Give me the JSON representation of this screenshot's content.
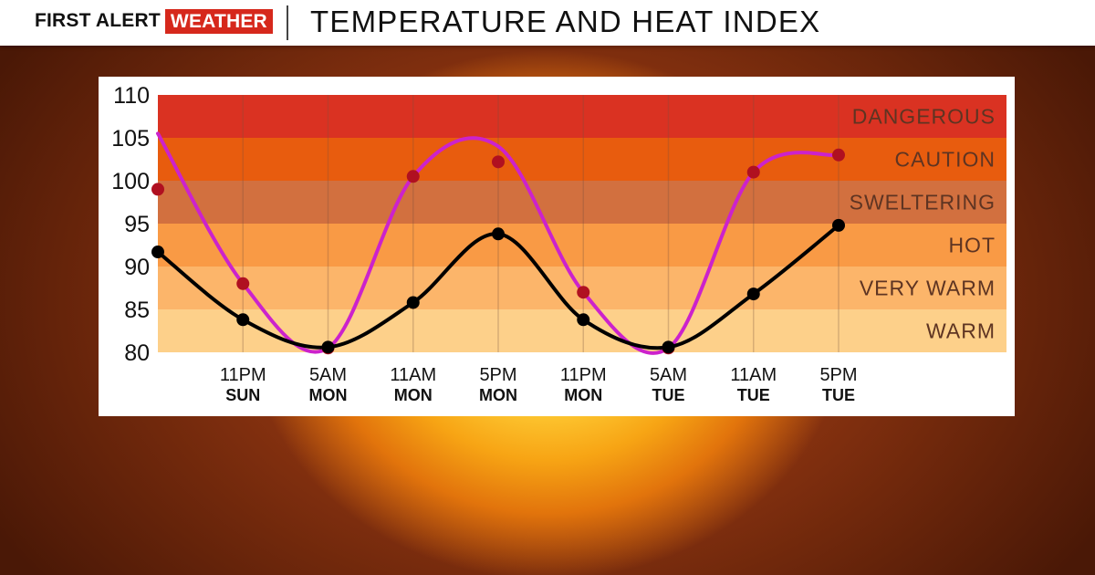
{
  "header": {
    "brand_first": "FIRST ALERT",
    "brand_weather": "WEATHER",
    "title": "TEMPERATURE AND HEAT INDEX"
  },
  "colors": {
    "brand_red": "#d6281c",
    "heat_index_line": "#cc22cc",
    "heat_index_point": "#b01020",
    "temperature_line": "#000000"
  },
  "chart_data": {
    "type": "line",
    "title": "TEMPERATURE AND HEAT INDEX",
    "ylim": [
      80,
      110
    ],
    "yticks": [
      80,
      85,
      90,
      95,
      100,
      105,
      110
    ],
    "grid": true,
    "x_labels": [
      {
        "time": "11PM",
        "day": "SUN"
      },
      {
        "time": "5AM",
        "day": "MON"
      },
      {
        "time": "11AM",
        "day": "MON"
      },
      {
        "time": "5PM",
        "day": "MON"
      },
      {
        "time": "11PM",
        "day": "MON"
      },
      {
        "time": "5AM",
        "day": "TUE"
      },
      {
        "time": "11AM",
        "day": "TUE"
      },
      {
        "time": "5PM",
        "day": "TUE"
      }
    ],
    "zones": [
      {
        "label": "WARM",
        "from": 80,
        "to": 85,
        "color": "#fdd08a"
      },
      {
        "label": "VERY WARM",
        "from": 85,
        "to": 90,
        "color": "#fcb56a"
      },
      {
        "label": "HOT",
        "from": 90,
        "to": 95,
        "color": "#f99a45"
      },
      {
        "label": "SWELTERING",
        "from": 95,
        "to": 100,
        "color": "#d2703f"
      },
      {
        "label": "CAUTION",
        "from": 100,
        "to": 105,
        "color": "#e85c0e"
      },
      {
        "label": "DANGEROUS",
        "from": 105,
        "to": 110,
        "color": "#da3222"
      }
    ],
    "series": [
      {
        "values": [
          99,
          88,
          80.5,
          100.5,
          102.2,
          87,
          80.5,
          101,
          103
        ],
        "line_values": [
          105.5,
          88,
          80.5,
          100.5,
          104,
          87,
          80.5,
          101,
          103
        ]
      },
      {
        "values": [
          91.7,
          83.8,
          80.6,
          85.8,
          93.8,
          83.8,
          80.6,
          86.8,
          94.8
        ]
      }
    ]
  }
}
